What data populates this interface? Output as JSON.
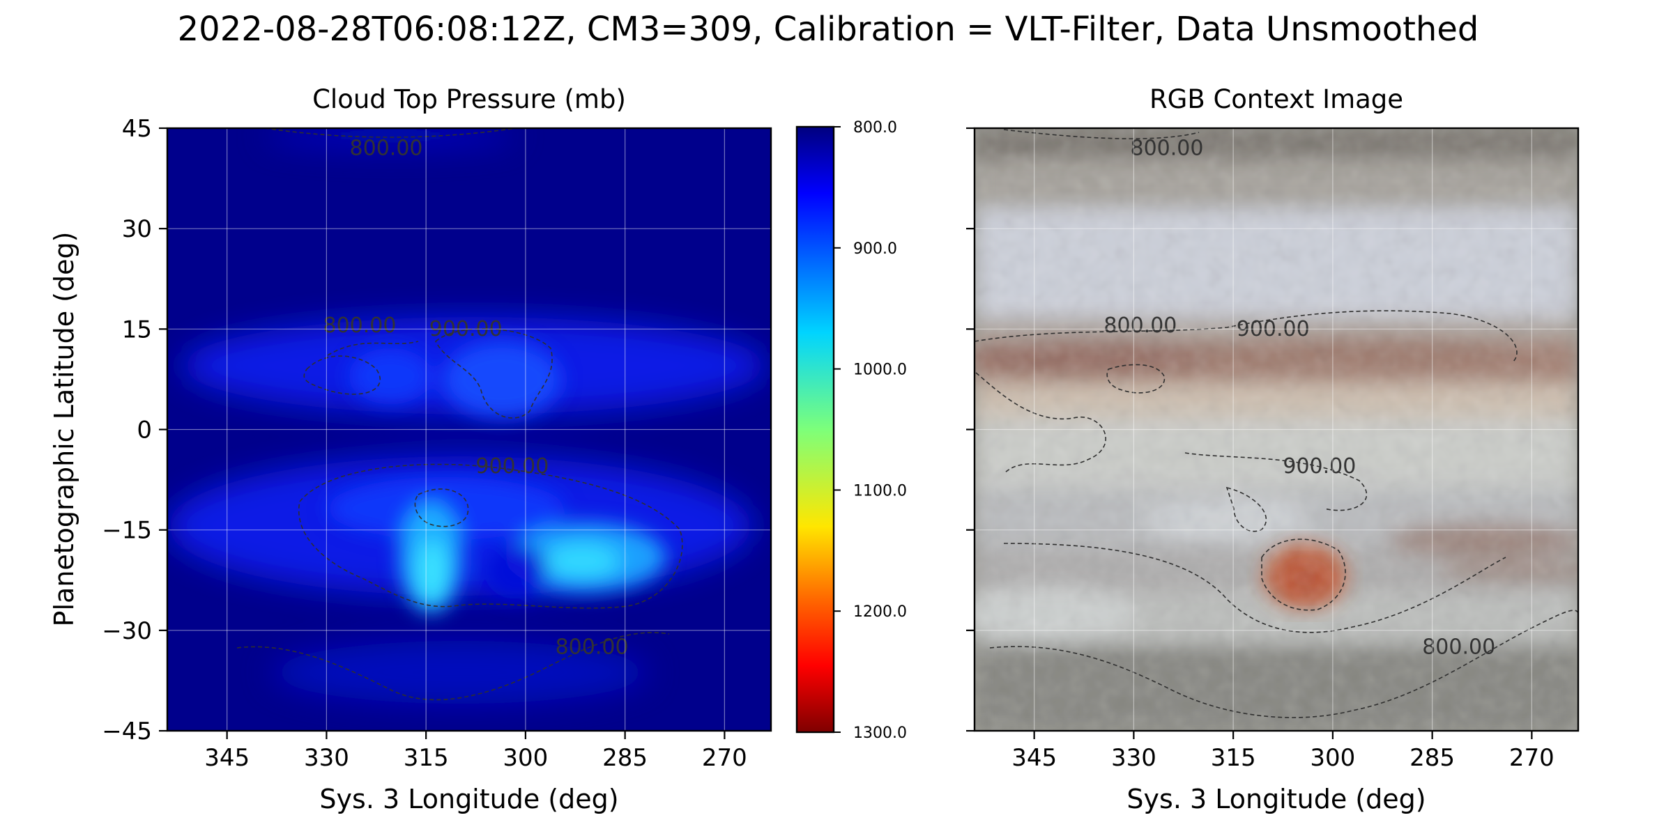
{
  "figure": {
    "title": "2022-08-28T06:08:12Z, CM3=309, Calibration = VLT-Filter, Data Unsmoothed"
  },
  "colors": {
    "background_low": "#00008c",
    "jet": [
      "#00007f",
      "#0000ff",
      "#007fff",
      "#00ffff",
      "#7fff7f",
      "#ffff00",
      "#ff7f00",
      "#ff0000",
      "#7f0000"
    ],
    "contour": "#2f2f2f"
  },
  "chart_data": [
    {
      "type": "heatmap",
      "title": "Cloud Top Pressure (mb)",
      "xlabel": "Sys. 3 Longitude (deg)",
      "ylabel": "Planetographic Latitude (deg)",
      "xlim": [
        354,
        263
      ],
      "ylim": [
        -45,
        45
      ],
      "x_ticks": [
        "345",
        "330",
        "315",
        "300",
        "285",
        "270"
      ],
      "x_tick_values": [
        345,
        330,
        315,
        300,
        285,
        270
      ],
      "y_ticks": [
        "45",
        "30",
        "15",
        "0",
        "−15",
        "−30",
        "−45"
      ],
      "y_tick_values": [
        45,
        30,
        15,
        0,
        -15,
        -30,
        -45
      ],
      "grid": true,
      "colorbar": {
        "vmin": 800,
        "vmax": 1300,
        "colormap": "jet_r",
        "tick_labels": [
          "800.0",
          "900.0",
          "1000.0",
          "1100.0",
          "1200.0",
          "1300.0"
        ],
        "tick_values": [
          800,
          900,
          1000,
          1100,
          1200,
          1300
        ]
      },
      "contour_labels": [
        {
          "text": "800.00",
          "lon": 321,
          "lat": 41
        },
        {
          "text": "800.00",
          "lon": 325,
          "lat": 14.5
        },
        {
          "text": "900.00",
          "lon": 309,
          "lat": 14
        },
        {
          "text": "900.00",
          "lon": 302,
          "lat": -6.5
        },
        {
          "text": "800.00",
          "lon": 290,
          "lat": -33.5
        }
      ],
      "features": [
        {
          "lon": 316,
          "lat": -21,
          "pressure": 985
        },
        {
          "lon": 290,
          "lat": -19,
          "pressure": 975
        },
        {
          "lon": 302,
          "lat": 7,
          "pressure": 950
        },
        {
          "lon": 314,
          "lat": 7,
          "pressure": 930
        },
        {
          "lon": 305,
          "lat": -21,
          "pressure": 850
        }
      ]
    },
    {
      "type": "heatmap",
      "title": "RGB Context Image",
      "xlabel": "Sys. 3 Longitude (deg)",
      "xlim": [
        354,
        263
      ],
      "ylim": [
        -45,
        45
      ],
      "x_ticks": [
        "345",
        "330",
        "315",
        "300",
        "285",
        "270"
      ],
      "x_tick_values": [
        345,
        330,
        315,
        300,
        285,
        270
      ],
      "y_tick_values": [
        45,
        30,
        15,
        0,
        -15,
        -30,
        -45
      ],
      "grid": true,
      "contour_labels": [
        {
          "text": "800.00",
          "lon": 325,
          "lat": 41
        },
        {
          "text": "800.00",
          "lon": 329,
          "lat": 14.5
        },
        {
          "text": "900.00",
          "lon": 309,
          "lat": 14
        },
        {
          "text": "900.00",
          "lon": 302,
          "lat": -6.5
        },
        {
          "text": "800.00",
          "lon": 281,
          "lat": -33.5
        }
      ],
      "features": [
        {
          "name": "Great Red Spot",
          "lon": 305,
          "lat": -23
        }
      ]
    }
  ]
}
